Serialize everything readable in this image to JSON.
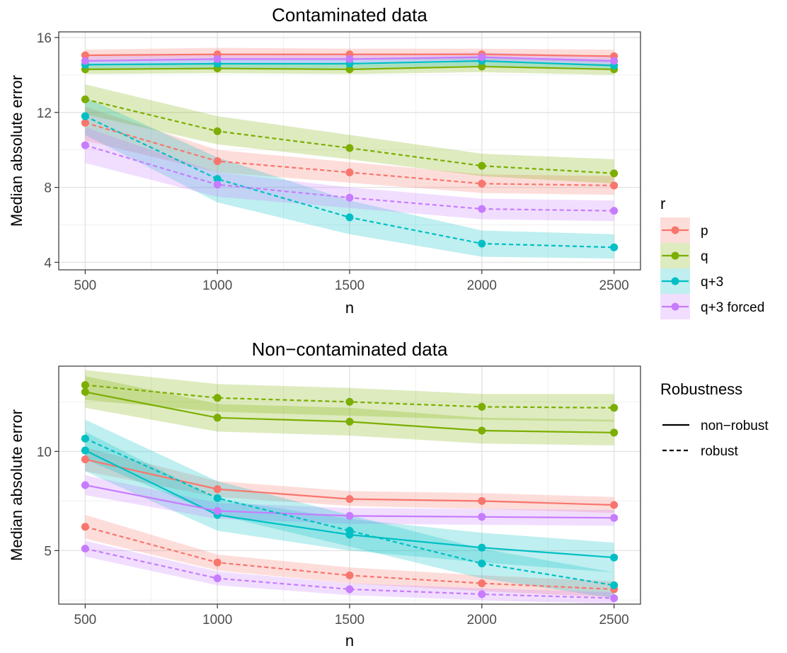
{
  "legend": {
    "color_title": "r",
    "color_entries": [
      {
        "label": "p",
        "color": "#F8766D"
      },
      {
        "label": "q",
        "color": "#7CAE00"
      },
      {
        "label": "q+3",
        "color": "#00BFC4"
      },
      {
        "label": "q+3 forced",
        "color": "#C77CFF"
      }
    ],
    "linetype_title": "Robustness",
    "linetype_entries": [
      {
        "label": "non−robust",
        "style": "solid"
      },
      {
        "label": "robust",
        "style": "dashed"
      }
    ]
  },
  "chart_data": [
    {
      "type": "line",
      "title": "Contaminated data",
      "xlabel": "n",
      "ylabel": "Median absolute error",
      "xlim": [
        400,
        2600
      ],
      "ylim": [
        3.6,
        16.3
      ],
      "x_ticks": [
        500,
        1000,
        1500,
        2000,
        2500
      ],
      "y_ticks": [
        4,
        8,
        12,
        16
      ],
      "x": [
        500,
        1000,
        1500,
        2000,
        2500
      ],
      "grid": true,
      "series": [
        {
          "name": "p",
          "robustness": "non−robust",
          "color": "#F8766D",
          "values": [
            15.05,
            15.1,
            15.1,
            15.1,
            15.0
          ],
          "lower": [
            14.75,
            14.85,
            14.8,
            14.8,
            14.65
          ],
          "upper": [
            15.35,
            15.45,
            15.4,
            15.4,
            15.35
          ]
        },
        {
          "name": "q",
          "robustness": "non−robust",
          "color": "#7CAE00",
          "values": [
            14.3,
            14.35,
            14.3,
            14.45,
            14.3
          ],
          "lower": [
            14.05,
            14.1,
            14.05,
            14.15,
            14.0
          ],
          "upper": [
            14.55,
            14.6,
            14.55,
            14.7,
            14.6
          ]
        },
        {
          "name": "q+3",
          "robustness": "non−robust",
          "color": "#00BFC4",
          "values": [
            14.55,
            14.6,
            14.6,
            14.75,
            14.5
          ],
          "lower": [
            14.3,
            14.35,
            14.35,
            14.5,
            14.25
          ],
          "upper": [
            14.8,
            14.85,
            14.85,
            15.0,
            14.75
          ]
        },
        {
          "name": "q+3 forced",
          "robustness": "non−robust",
          "color": "#C77CFF",
          "values": [
            14.75,
            14.85,
            14.85,
            14.95,
            14.75
          ],
          "lower": [
            14.5,
            14.6,
            14.6,
            14.7,
            14.5
          ],
          "upper": [
            15.0,
            15.1,
            15.1,
            15.2,
            15.0
          ]
        },
        {
          "name": "p",
          "robustness": "robust",
          "color": "#F8766D",
          "values": [
            11.45,
            9.4,
            8.8,
            8.2,
            8.1
          ],
          "lower": [
            10.5,
            8.8,
            8.25,
            7.7,
            7.6
          ],
          "upper": [
            12.3,
            10.0,
            9.35,
            8.7,
            8.6
          ]
        },
        {
          "name": "q",
          "robustness": "robust",
          "color": "#7CAE00",
          "values": [
            12.7,
            11.0,
            10.1,
            9.15,
            8.75
          ],
          "lower": [
            11.9,
            10.3,
            9.5,
            8.6,
            8.2
          ],
          "upper": [
            13.5,
            11.8,
            10.8,
            9.8,
            9.5
          ]
        },
        {
          "name": "q+3",
          "robustness": "robust",
          "color": "#00BFC4",
          "values": [
            11.8,
            8.45,
            6.4,
            5.0,
            4.8
          ],
          "lower": [
            10.8,
            7.2,
            5.5,
            4.3,
            4.2
          ],
          "upper": [
            12.8,
            9.6,
            7.3,
            5.7,
            5.5
          ]
        },
        {
          "name": "q+3 forced",
          "robustness": "robust",
          "color": "#C77CFF",
          "values": [
            10.25,
            8.15,
            7.45,
            6.85,
            6.75
          ],
          "lower": [
            9.3,
            7.5,
            6.9,
            6.3,
            6.2
          ],
          "upper": [
            11.2,
            8.8,
            8.0,
            7.4,
            7.3
          ]
        }
      ]
    },
    {
      "type": "line",
      "title": "Non−contaminated data",
      "xlabel": "n",
      "ylabel": "Median absolute error",
      "xlim": [
        400,
        2600
      ],
      "ylim": [
        2.3,
        14.3
      ],
      "x_ticks": [
        500,
        1000,
        1500,
        2000,
        2500
      ],
      "y_ticks": [
        5,
        10
      ],
      "x": [
        500,
        1000,
        1500,
        2000,
        2500
      ],
      "grid": true,
      "series": [
        {
          "name": "p",
          "robustness": "non−robust",
          "color": "#F8766D",
          "values": [
            9.6,
            8.1,
            7.6,
            7.5,
            7.3
          ],
          "lower": [
            9.0,
            7.7,
            7.25,
            7.1,
            6.9
          ],
          "upper": [
            10.2,
            8.5,
            8.0,
            7.9,
            7.7
          ]
        },
        {
          "name": "q",
          "robustness": "non−robust",
          "color": "#7CAE00",
          "values": [
            13.0,
            11.7,
            11.5,
            11.05,
            10.95
          ],
          "lower": [
            12.2,
            11.0,
            10.8,
            10.4,
            10.3
          ],
          "upper": [
            13.8,
            12.4,
            12.2,
            11.7,
            11.6
          ]
        },
        {
          "name": "q+3",
          "robustness": "non−robust",
          "color": "#00BFC4",
          "values": [
            10.05,
            6.8,
            5.8,
            5.15,
            4.65
          ],
          "lower": [
            9.0,
            6.0,
            5.0,
            4.4,
            3.9
          ],
          "upper": [
            11.0,
            7.6,
            6.6,
            5.9,
            5.4
          ]
        },
        {
          "name": "q+3 forced",
          "robustness": "non−robust",
          "color": "#C77CFF",
          "values": [
            8.3,
            7.0,
            6.75,
            6.7,
            6.65
          ],
          "lower": [
            7.8,
            6.6,
            6.35,
            6.3,
            6.25
          ],
          "upper": [
            8.8,
            7.4,
            7.15,
            7.1,
            7.05
          ]
        },
        {
          "name": "p",
          "robustness": "robust",
          "color": "#F8766D",
          "values": [
            6.2,
            4.4,
            3.75,
            3.35,
            3.05
          ],
          "lower": [
            5.6,
            4.0,
            3.35,
            2.95,
            2.65
          ],
          "upper": [
            6.8,
            4.8,
            4.15,
            3.75,
            3.45
          ]
        },
        {
          "name": "q",
          "robustness": "robust",
          "color": "#7CAE00",
          "values": [
            13.35,
            12.7,
            12.5,
            12.25,
            12.2
          ],
          "lower": [
            12.6,
            12.0,
            11.8,
            11.6,
            11.5
          ],
          "upper": [
            14.1,
            13.4,
            13.2,
            12.9,
            12.9
          ]
        },
        {
          "name": "q+3",
          "robustness": "robust",
          "color": "#00BFC4",
          "values": [
            10.65,
            7.65,
            6.0,
            4.35,
            3.25
          ],
          "lower": [
            9.6,
            6.8,
            5.2,
            3.6,
            2.6
          ],
          "upper": [
            11.6,
            8.5,
            6.8,
            5.1,
            3.9
          ]
        },
        {
          "name": "q+3 forced",
          "robustness": "robust",
          "color": "#C77CFF",
          "values": [
            5.1,
            3.6,
            3.05,
            2.8,
            2.6
          ],
          "lower": [
            4.7,
            3.25,
            2.75,
            2.5,
            2.3
          ],
          "upper": [
            5.5,
            3.95,
            3.35,
            3.1,
            2.9
          ]
        }
      ]
    }
  ]
}
